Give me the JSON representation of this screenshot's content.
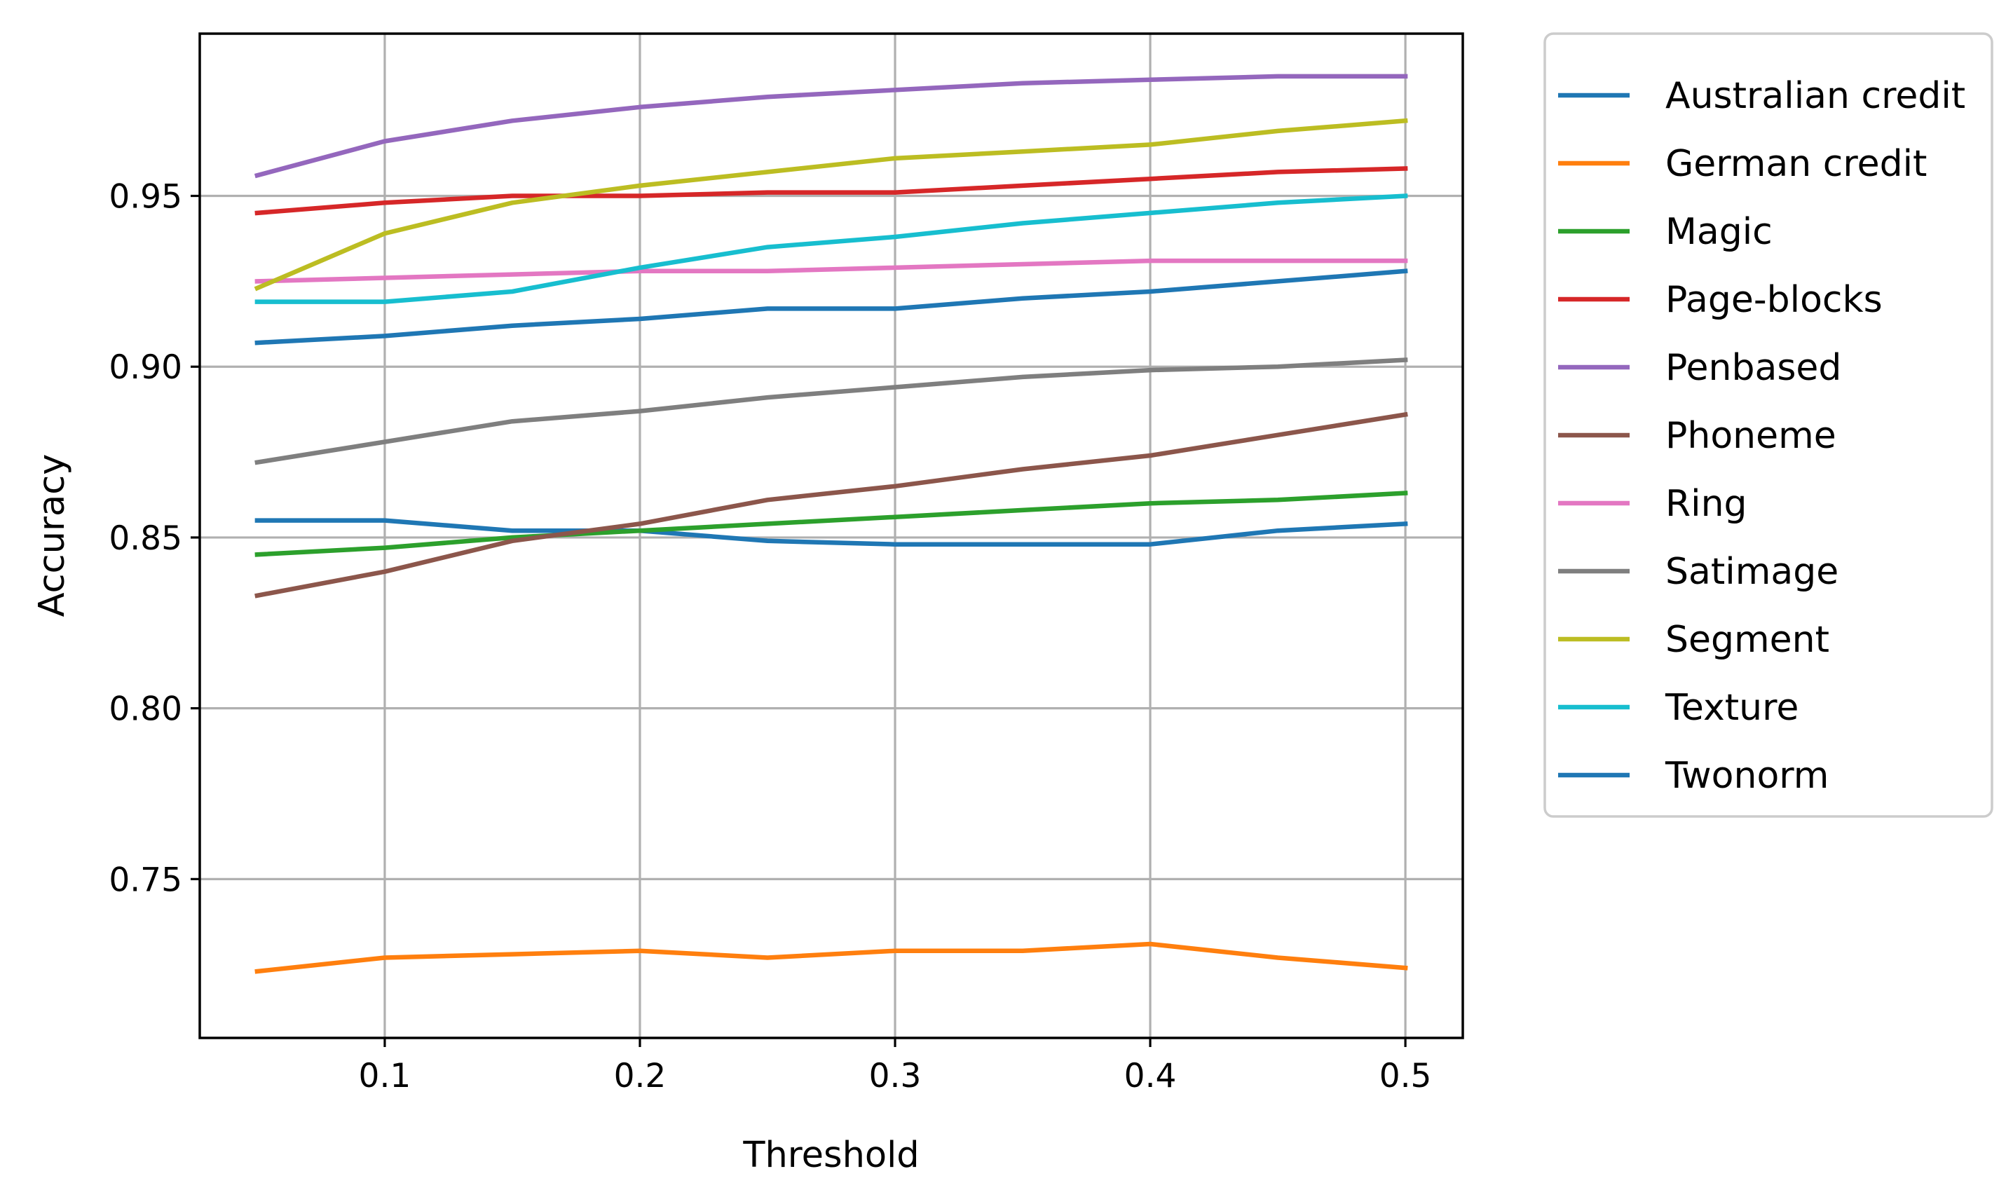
{
  "chart_data": {
    "type": "line",
    "title": "",
    "xlabel": "Threshold",
    "ylabel": "Accuracy",
    "xlim": [
      0.0275,
      0.5225
    ],
    "ylim": [
      0.7035,
      0.9975
    ],
    "xticks": [
      0.1,
      0.2,
      0.3,
      0.4,
      0.5
    ],
    "xtick_labels": [
      "0.1",
      "0.2",
      "0.3",
      "0.4",
      "0.5"
    ],
    "yticks": [
      0.75,
      0.8,
      0.85,
      0.9,
      0.95
    ],
    "ytick_labels": [
      "0.75",
      "0.80",
      "0.85",
      "0.90",
      "0.95"
    ],
    "grid": true,
    "legend_position": "outside-right-top",
    "x": [
      0.05,
      0.1,
      0.15,
      0.2,
      0.25,
      0.3,
      0.35,
      0.4,
      0.45,
      0.5
    ],
    "series": [
      {
        "name": "Australian credit",
        "color": "#1f77b4",
        "values": [
          0.855,
          0.855,
          0.852,
          0.852,
          0.849,
          0.848,
          0.848,
          0.848,
          0.852,
          0.854
        ]
      },
      {
        "name": "German credit",
        "color": "#ff7f0e",
        "values": [
          0.723,
          0.727,
          0.728,
          0.729,
          0.727,
          0.729,
          0.729,
          0.731,
          0.727,
          0.724
        ]
      },
      {
        "name": "Magic",
        "color": "#2ca02c",
        "values": [
          0.845,
          0.847,
          0.85,
          0.852,
          0.854,
          0.856,
          0.858,
          0.86,
          0.861,
          0.863
        ]
      },
      {
        "name": "Page-blocks",
        "color": "#d62728",
        "values": [
          0.945,
          0.948,
          0.95,
          0.95,
          0.951,
          0.951,
          0.953,
          0.955,
          0.957,
          0.958
        ]
      },
      {
        "name": "Penbased",
        "color": "#9467bd",
        "values": [
          0.956,
          0.966,
          0.972,
          0.976,
          0.979,
          0.981,
          0.983,
          0.984,
          0.985,
          0.985
        ]
      },
      {
        "name": "Phoneme",
        "color": "#8c564b",
        "values": [
          0.833,
          0.84,
          0.849,
          0.854,
          0.861,
          0.865,
          0.87,
          0.874,
          0.88,
          0.886
        ]
      },
      {
        "name": "Ring",
        "color": "#e377c2",
        "values": [
          0.925,
          0.926,
          0.927,
          0.928,
          0.928,
          0.929,
          0.93,
          0.931,
          0.931,
          0.931
        ]
      },
      {
        "name": "Satimage",
        "color": "#7f7f7f",
        "values": [
          0.872,
          0.878,
          0.884,
          0.887,
          0.891,
          0.894,
          0.897,
          0.899,
          0.9,
          0.902
        ]
      },
      {
        "name": "Segment",
        "color": "#bcbd22",
        "values": [
          0.923,
          0.939,
          0.948,
          0.953,
          0.957,
          0.961,
          0.963,
          0.965,
          0.969,
          0.972
        ]
      },
      {
        "name": "Texture",
        "color": "#17becf",
        "values": [
          0.919,
          0.919,
          0.922,
          0.929,
          0.935,
          0.938,
          0.942,
          0.945,
          0.948,
          0.95
        ]
      },
      {
        "name": "Twonorm",
        "color": "#1f77b4",
        "values": [
          0.907,
          0.909,
          0.912,
          0.914,
          0.917,
          0.917,
          0.92,
          0.922,
          0.925,
          0.928
        ]
      }
    ]
  }
}
